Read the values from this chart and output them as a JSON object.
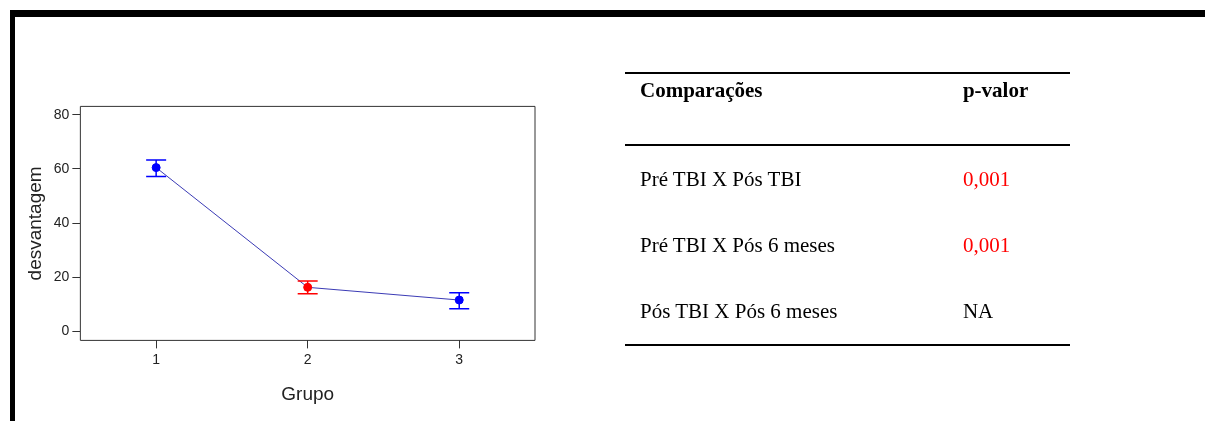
{
  "chart_data": [
    {
      "type": "line",
      "xlabel": "Grupo",
      "ylabel": "desvantagem",
      "categories": [
        "1",
        "2",
        "3"
      ],
      "series": [
        {
          "color": "#3b3bb5",
          "colors": [
            "#0000ff",
            "#ff0000",
            "#0000ff"
          ],
          "values": [
            60.5,
            16.3,
            11.6
          ],
          "errors": [
            [
              57.2,
              63.3
            ],
            [
              13.9,
              18.6
            ],
            [
              8.4,
              14.3
            ]
          ]
        }
      ],
      "ylim": [
        -3.3,
        83.1
      ],
      "yticks": [
        0,
        20,
        40,
        60,
        80
      ],
      "grid": false,
      "legend": false,
      "marker": "circle",
      "line_style": "solid"
    },
    {
      "type": "other",
      "annotations": [
        "Comparações",
        "p-valor"
      ],
      "categories": [
        "Pré TBI X Pós TBI",
        "Pré TBI X Pós 6 meses",
        "Pós TBI X Pós 6 meses"
      ],
      "value_labels": [
        "0,001",
        "0,001",
        "NA"
      ],
      "colors": [
        "#ff0000",
        "#ff0000",
        "#000000"
      ]
    }
  ]
}
